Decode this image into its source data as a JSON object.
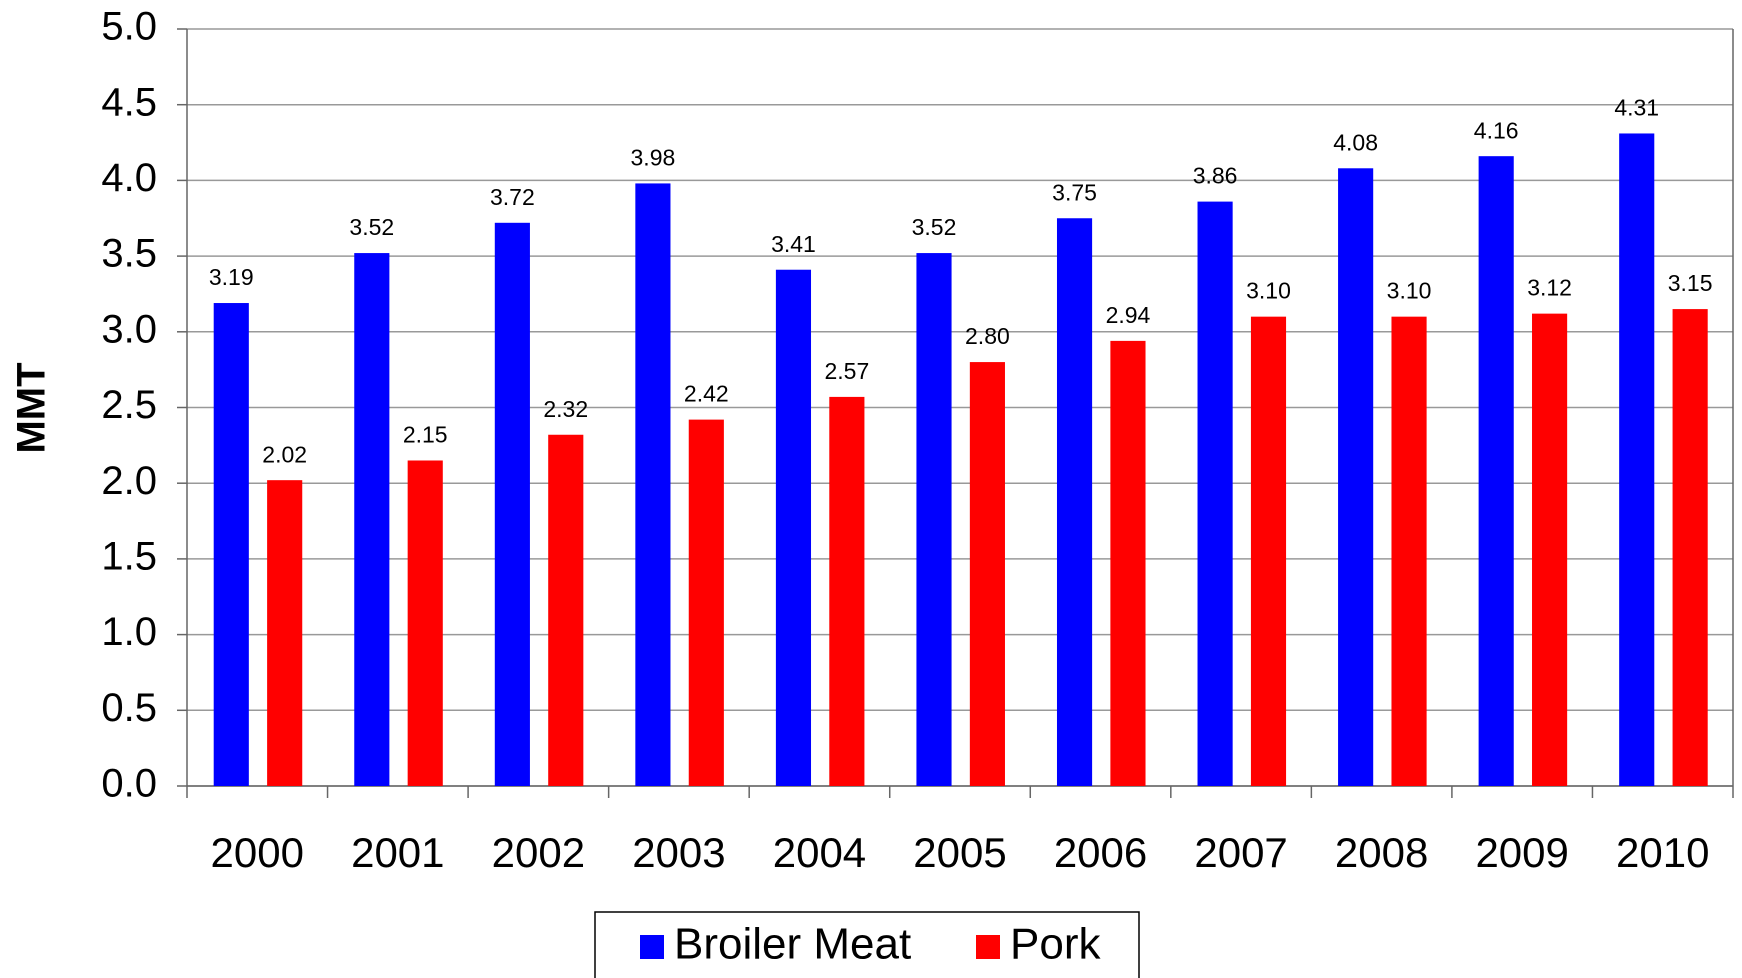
{
  "chart_data": {
    "type": "bar",
    "y_label": "MMT",
    "categories": [
      "2000",
      "2001",
      "2002",
      "2003",
      "2004",
      "2005",
      "2006",
      "2007",
      "2008",
      "2009",
      "2010"
    ],
    "series": [
      {
        "name": "Broiler Meat",
        "color": "#0000ff",
        "values": [
          3.19,
          3.52,
          3.72,
          3.98,
          3.41,
          3.52,
          3.75,
          3.86,
          4.08,
          4.16,
          4.31
        ],
        "value_labels": [
          "3.19",
          "3.52",
          "3.72",
          "3.98",
          "3.41",
          "3.52",
          "3.75",
          "3.86",
          "4.08",
          "4.16",
          "4.31"
        ]
      },
      {
        "name": "Pork",
        "color": "#ff0000",
        "values": [
          2.02,
          2.15,
          2.32,
          2.42,
          2.57,
          2.8,
          2.94,
          3.1,
          3.1,
          3.12,
          3.15
        ],
        "value_labels": [
          "2.02",
          "2.15",
          "2.32",
          "2.42",
          "2.57",
          "2.80",
          "2.94",
          "3.10",
          "3.10",
          "3.12",
          "3.15"
        ]
      }
    ],
    "ylim": [
      0,
      5
    ],
    "yticks": [
      {
        "value": 0,
        "label": "0.0"
      },
      {
        "value": 0.5,
        "label": "0.5"
      },
      {
        "value": 1,
        "label": "1.0"
      },
      {
        "value": 1.5,
        "label": "1.5"
      },
      {
        "value": 2,
        "label": "2.0"
      },
      {
        "value": 2.5,
        "label": "2.5"
      },
      {
        "value": 3,
        "label": "3.0"
      },
      {
        "value": 3.5,
        "label": "3.5"
      },
      {
        "value": 4,
        "label": "4.0"
      },
      {
        "value": 4.5,
        "label": "4.5"
      },
      {
        "value": 5,
        "label": "5.0"
      }
    ],
    "grid": true,
    "legend": "bottom"
  }
}
